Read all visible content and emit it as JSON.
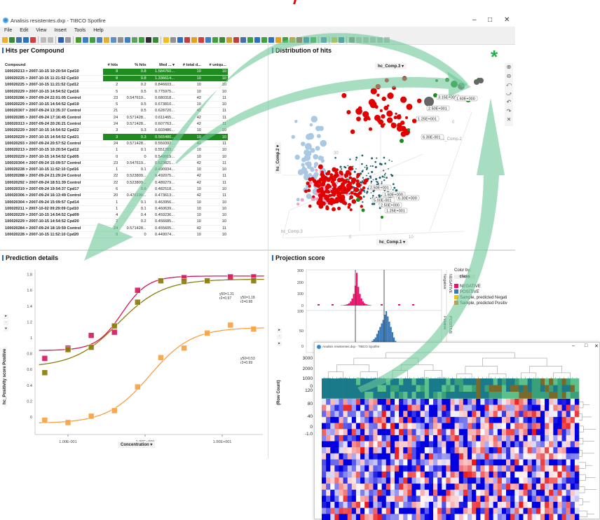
{
  "window": {
    "title": "Analisis resistentes.dxp - TIBCO Spotfire",
    "controls": {
      "minimize": "–",
      "maximize": "□",
      "close": "✕"
    }
  },
  "menu": [
    "File",
    "Edit",
    "View",
    "Insert",
    "Tools",
    "Help"
  ],
  "toolbar_icons": [
    {
      "name": "open-icon",
      "color": "#e8b030"
    },
    {
      "name": "save-to-library-icon",
      "color": "#3a8a3a"
    },
    {
      "name": "refresh-icon",
      "color": "#4070b0"
    },
    {
      "name": "save-icon",
      "color": "#3070c0"
    },
    {
      "name": "export-pdf-icon",
      "color": "#d04040"
    },
    {
      "sep": true
    },
    {
      "name": "copy-icon",
      "color": "#bbbbbb"
    },
    {
      "name": "paste-icon",
      "color": "#bbbbbb"
    },
    {
      "sep": true
    },
    {
      "name": "undo-icon",
      "color": "#3060b0"
    },
    {
      "name": "redo-icon",
      "color": "#999999"
    },
    {
      "sep": true
    },
    {
      "name": "reset-icon",
      "color": "#4a9a30"
    },
    {
      "name": "filter-icon",
      "color": "#3a80c8"
    },
    {
      "name": "details-icon",
      "color": "#40a040"
    },
    {
      "name": "data-panel-icon",
      "color": "#5080c0"
    },
    {
      "name": "tags-icon",
      "color": "#e0b030"
    },
    {
      "name": "bookmark-icon",
      "color": "#6090c0"
    },
    {
      "name": "lists-icon",
      "color": "#909090"
    },
    {
      "name": "table-icon",
      "color": "#4080c0"
    },
    {
      "name": "legend-icon",
      "color": "#60a060"
    },
    {
      "name": "ellipse-icon",
      "color": "#40a040"
    },
    {
      "name": "color-icon",
      "color": "#303030"
    },
    {
      "name": "add-icon",
      "color": "#3a8a3a"
    },
    {
      "sep": true
    },
    {
      "name": "lightbulb-icon",
      "color": "#f0c020"
    },
    {
      "name": "text-area-icon",
      "color": "#909090"
    },
    {
      "name": "bar-chart-icon",
      "color": "#3070c0"
    },
    {
      "name": "line-chart-icon",
      "color": "#c04040"
    },
    {
      "name": "combo-chart-icon",
      "color": "#e0a020"
    },
    {
      "name": "pie-chart-icon",
      "color": "#d04040"
    },
    {
      "name": "scatter-icon",
      "color": "#4080c0"
    },
    {
      "name": "3d-scatter-icon",
      "color": "#40a040"
    },
    {
      "name": "map-icon",
      "color": "#3a8a3a"
    },
    {
      "name": "treemap-icon",
      "color": "#d0a030"
    },
    {
      "name": "heatmap-icon",
      "color": "#c04040"
    },
    {
      "name": "parallel-icon",
      "color": "#4070b0"
    },
    {
      "name": "summary-icon",
      "color": "#40a040"
    },
    {
      "name": "crosstab-icon",
      "color": "#3070c0"
    },
    {
      "name": "kpi-icon",
      "color": "#40a040"
    },
    {
      "name": "globe-icon",
      "color": "#3070c0"
    },
    {
      "name": "chart-icon",
      "color": "#e0a020"
    },
    {
      "name": "grid-icon",
      "color": "#40a040"
    },
    {
      "name": "matrix-icon",
      "color": "#d0a030"
    },
    {
      "name": "network-icon",
      "color": "#c04040"
    },
    {
      "name": "info-icon",
      "color": "#3070c0"
    },
    {
      "name": "boxplot-icon",
      "color": "#40a040"
    },
    {
      "sep": true
    },
    {
      "name": "picture-icon",
      "color": "#5080c0"
    },
    {
      "sep": true
    },
    {
      "name": "note-icon",
      "color": "#e0c040"
    },
    {
      "name": "gear-icon",
      "color": "#4070b0"
    },
    {
      "sep": true
    },
    {
      "name": "print-icon",
      "color": "#888888"
    },
    {
      "name": "layout-icon",
      "color": "#bbbbbb"
    },
    {
      "name": "layout2-icon",
      "color": "#bbbbbb"
    },
    {
      "name": "layout3-icon",
      "color": "#bbbbbb"
    },
    {
      "name": "expand-icon",
      "color": "#bbbbbb"
    },
    {
      "name": "lock-icon",
      "color": "#bbbbbb"
    }
  ],
  "hits_panel": {
    "title": "Hits per Compound",
    "columns": [
      "Compound",
      "# hits",
      "% hits",
      "Med ... ▾",
      "# total d...",
      "# uniqu..."
    ],
    "highlight_color": "#1e8c1e",
    "rows": [
      {
        "c": [
          "100020213 > 2007-10-15 10:20:54 Cpd10",
          "8",
          "0.8",
          "1.584760...",
          "10",
          "10"
        ],
        "hl": true
      },
      {
        "c": [
          "100020225 > 2007-10-15 11:21:52 Cpd10",
          "8",
          "0.8",
          "1.336614...",
          "10",
          "10"
        ],
        "hl": true
      },
      {
        "c": [
          "100020225 > 2007-10-15 11:21:52 Cpd12",
          "2",
          "0.2",
          "0.846603...",
          "10",
          "10"
        ]
      },
      {
        "c": [
          "100020229 > 2007-10-15 14:54:52 Cpd16",
          "5",
          "0.5",
          "0.775975...",
          "10",
          "10"
        ]
      },
      {
        "c": [
          "100020286 > 2007-09-24 22:01:05 Control",
          "23",
          "0.547619...",
          "0.680318...",
          "42",
          "11"
        ]
      },
      {
        "c": [
          "100020229 > 2007-10-15 14:54:52 Cpd19",
          "5",
          "0.5",
          "0.673810...",
          "10",
          "10"
        ]
      },
      {
        "c": [
          "100020307 > 2007-09-24 13:35:37 Control",
          "21",
          "0.5",
          "0.628720...",
          "42",
          "11"
        ]
      },
      {
        "c": [
          "100020285 > 2007-09-24 17:16:45 Control",
          "24",
          "0.571428...",
          "0.611465...",
          "42",
          "11"
        ]
      },
      {
        "c": [
          "100020313 > 2007-09-24 20:26:21 Control",
          "24",
          "0.571428...",
          "0.607763...",
          "42",
          "11"
        ]
      },
      {
        "c": [
          "100020229 > 2007-10-15 14:54:52 Cpd22",
          "3",
          "0.3",
          "0.603486...",
          "10",
          "10"
        ]
      },
      {
        "c": [
          "100020229 > 2007-10-15 14:54:52 Cpd21",
          "3",
          "0.3",
          "0.565480...",
          "10",
          "10"
        ],
        "hl": true
      },
      {
        "c": [
          "100020293 > 2007-09-24 20:57:52 Control",
          "24",
          "0.571428...",
          "0.559392...",
          "42",
          "11"
        ]
      },
      {
        "c": [
          "100020213 > 2007-10-15 10:20:54 Cpd12",
          "1",
          "0.1",
          "0.551283...",
          "10",
          "10"
        ]
      },
      {
        "c": [
          "100020229 > 2007-10-15 14:54:52 Cpd05",
          "0",
          "0",
          "0.549919...",
          "10",
          "10"
        ]
      },
      {
        "c": [
          "100020304 > 2007-09-24 15:09:57 Control",
          "23",
          "0.547619...",
          "0.523821...",
          "42",
          "11"
        ]
      },
      {
        "c": [
          "100020228 > 2007-10-15 11:52:10 Cpd16",
          "1",
          "0.1",
          "0.490934...",
          "10",
          "10"
        ]
      },
      {
        "c": [
          "100020288 > 2007-09-24 21:29:24 Control",
          "22",
          "0.523809...",
          "0.492075...",
          "42",
          "11"
        ]
      },
      {
        "c": [
          "100020292 > 2007-09-24 18:51:39 Control",
          "22",
          "0.523809...",
          "0.489279...",
          "42",
          "11"
        ]
      },
      {
        "c": [
          "100020319 > 2007-09-24 19:54:37 Cpd17",
          "6",
          "0.6",
          "0.482518...",
          "10",
          "10"
        ]
      },
      {
        "c": [
          "100020306 > 2007-09-24 16:13:49 Control",
          "20",
          "0.476190...",
          "0.473613...",
          "42",
          "11"
        ]
      },
      {
        "c": [
          "100020304 > 2007-09-24 15:09:57 Cpd14",
          "1",
          "0.1",
          "0.463956...",
          "10",
          "10"
        ]
      },
      {
        "c": [
          "100020211 > 2007-10-02 09:29:09 Cpd10",
          "1",
          "0.1",
          "0.460639...",
          "10",
          "10"
        ]
      },
      {
        "c": [
          "100020229 > 2007-10-15 14:54:52 Cpd09",
          "4",
          "0.4",
          "0.459236...",
          "10",
          "10"
        ]
      },
      {
        "c": [
          "100020229 > 2007-10-15 14:54:52 Cpd20",
          "2",
          "0.2",
          "0.456685...",
          "10",
          "10"
        ]
      },
      {
        "c": [
          "100020284 > 2007-09-24 18:19:59 Control",
          "24",
          "0.571428...",
          "0.455605...",
          "42",
          "11"
        ]
      },
      {
        "c": [
          "100020228 > 2007-10-15 11:52:10 Cpd20",
          "0",
          "0",
          "0.449074...",
          "10",
          "10"
        ]
      }
    ]
  },
  "distribution_panel": {
    "title": "Distribution of hits",
    "z_axis": "hc_Comp.3",
    "y_axis": "hc_Comp.2",
    "x_axis": "hc_Comp.1",
    "axis_labels": {
      "back": "hc_Comp.2",
      "front": "hc_Comp.3",
      "tick_30": "30",
      "tick_0": "0",
      "tick_10": "10",
      "tick_0b": "0"
    },
    "point_labels": [
      "3.15E+000",
      "1.60E+000",
      "2.50E+001",
      "1.25E+001",
      "6.30E-001",
      "2.50E+001",
      "1.60E+000",
      "5.00E-001",
      "2.50E+000",
      "1.25E+001",
      "6.30E+000",
      "2.50E+001",
      "5.00E+..."
    ],
    "colors": {
      "red": "#e00000",
      "lightblue": "#a9c8e4",
      "pink": "#f2a0c8",
      "teal": "#1f5f70",
      "green": "#1a8a1a"
    },
    "nav_icons": [
      "zoom-in-icon",
      "zoom-out-icon",
      "rotate-left-icon",
      "rotate-right-icon",
      "rotate-up-icon",
      "rotate-down-icon",
      "reset-view-icon"
    ],
    "marker": "*"
  },
  "chart_data": {
    "type": "line",
    "title": "Prediction details",
    "xlabel": "Concentration",
    "ylabel": "hc_Positivity score Positive",
    "xscale": "log",
    "xticks": [
      "1.00E-001",
      "1.00E+000",
      "1.00E+001"
    ],
    "xlim": [
      0.04,
      35
    ],
    "ylim": [
      -0.15,
      1.85
    ],
    "yticks": [
      0,
      0.2,
      0.4,
      0.6,
      0.8,
      1,
      1.2,
      1.4,
      1.6,
      1.8
    ],
    "x": [
      0.05,
      0.1,
      0.2,
      0.4,
      0.8,
      1.6,
      3.2,
      6.4,
      12.8,
      25.6
    ],
    "series": [
      {
        "color": "#d8145a",
        "values": [
          0.74,
          0.87,
          1.03,
          1.07,
          1.6,
          null,
          1.76,
          null,
          1.77,
          1.77
        ],
        "fit": {
          "bottom": 0.84,
          "top": 1.78,
          "ec50": 0.5,
          "hill": 2.6
        },
        "point_at_ec50": 1.31,
        "annotation": [
          "y50=1.31",
          "r2=0.97"
        ]
      },
      {
        "color": "#8a7a08",
        "values": [
          0.56,
          0.85,
          0.88,
          1.15,
          1.45,
          1.72,
          1.71,
          1.72,
          null,
          1.72
        ],
        "fit": {
          "bottom": 0.63,
          "top": 1.74,
          "ec50": 0.45,
          "hill": 1.5
        },
        "annotation": [
          "y50=1.18",
          "r2=0.98"
        ]
      },
      {
        "color": "#f8a040",
        "values": [
          -0.04,
          -0.07,
          0.01,
          0.08,
          0.38,
          0.75,
          0.87,
          1.06,
          1.16,
          1.11
        ],
        "fit": {
          "bottom": -0.08,
          "top": 1.13,
          "ec50": 1.15,
          "hill": 1.6
        },
        "point_at_ec50": 0.53,
        "annotation": [
          "y50=0.53",
          "r2=0.99"
        ]
      }
    ]
  },
  "projection_panel": {
    "title": "Projection score",
    "color_by_label": "Color by:",
    "color_by_value": "class",
    "legend": [
      {
        "label": "NEGATIVE",
        "color": "#f0106a"
      },
      {
        "label": "POSITIVE",
        "color": "#3a78b8"
      },
      {
        "label": "Sample, predicted Negati",
        "color": "#f0c020"
      },
      {
        "label": "Sample, predicted Positiv",
        "color": "#f08020"
      }
    ],
    "strips": [
      {
        "outer": "NEGATIVE",
        "inner": "Negative"
      },
      {
        "outer": "POSITIVE",
        "inner": "Positive"
      }
    ],
    "top_ticks": [
      "300",
      "200",
      "100",
      "0"
    ],
    "bottom_ticks": [
      "100",
      "50",
      "0"
    ],
    "lower_ticks": [
      "3000",
      "2000",
      "1000",
      "0",
      "120",
      "80",
      "40",
      "0",
      "-1.0"
    ],
    "lower_ylabel": "(Row Count)",
    "neg_hist": [
      2,
      3,
      5,
      8,
      12,
      20,
      35,
      60,
      100,
      170,
      280,
      160,
      100,
      60,
      35,
      20,
      12,
      8,
      5,
      3
    ],
    "pos_hist": [
      10,
      15,
      20,
      25,
      35,
      45,
      55,
      65,
      75,
      90,
      100,
      85,
      70,
      55,
      40,
      25,
      15,
      8
    ]
  },
  "heatmap_window": {
    "title": "Analisis resistentes.dxp - TIBCO Spotfire",
    "controls": {
      "minimize": "–",
      "maximize": "□",
      "close": "✕"
    },
    "scale": {
      "low": "#0000e0",
      "mid": "#ffffff",
      "high": "#e80000"
    },
    "annotation_colors": [
      "#1a7a8a",
      "#5cc08a",
      "#3aa07a",
      "#7a6a2a"
    ]
  }
}
